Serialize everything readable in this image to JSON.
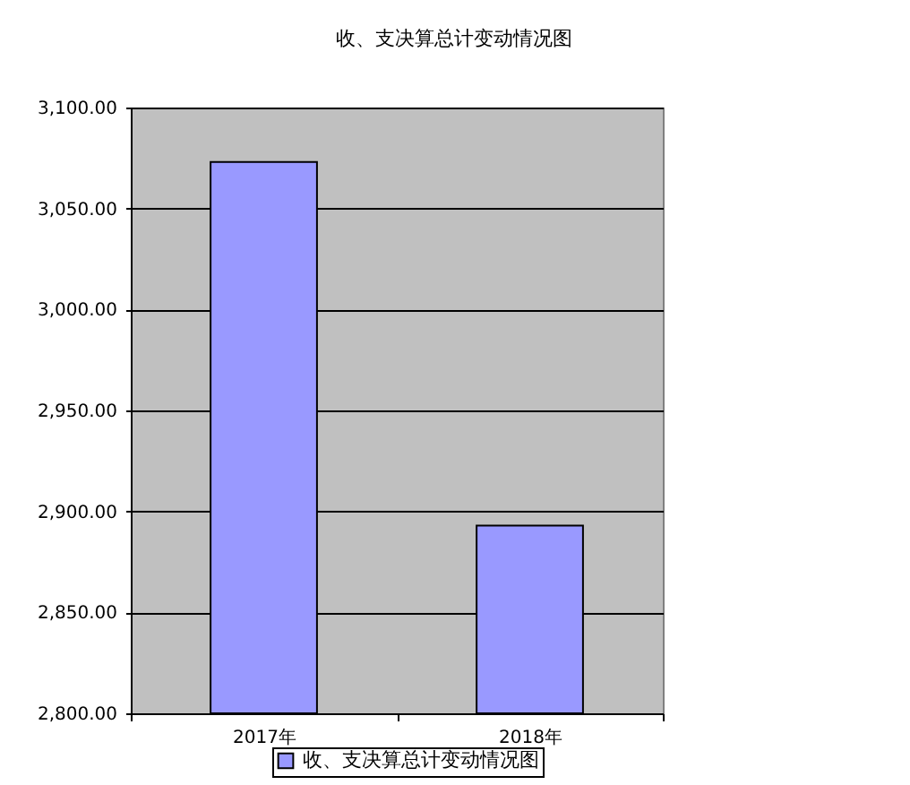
{
  "chart_data": {
    "type": "bar",
    "title": "收、支决算总计变动情况图",
    "categories": [
      "2017年",
      "2018年"
    ],
    "series": [
      {
        "name": "收、支决算总计变动情况图",
        "color": "#9999ff",
        "values": [
          3073,
          2893
        ]
      }
    ],
    "ylim": [
      2800,
      3100
    ],
    "yticks": [
      {
        "value": 2800,
        "label": "2,800.00"
      },
      {
        "value": 2850,
        "label": "2,850.00"
      },
      {
        "value": 2900,
        "label": "2,900.00"
      },
      {
        "value": 2950,
        "label": "2,950.00"
      },
      {
        "value": 3000,
        "label": "3,000.00"
      },
      {
        "value": 3050,
        "label": "3,050.00"
      },
      {
        "value": 3100,
        "label": "3,100.00"
      }
    ],
    "grid": "y",
    "legend": "bottom"
  }
}
